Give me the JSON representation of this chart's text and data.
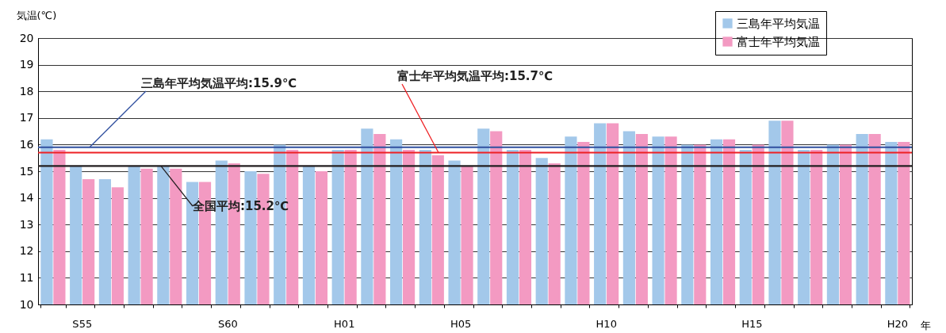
{
  "chart_data": {
    "type": "bar",
    "ylabel": "気温(℃)",
    "xlabel": "年",
    "categories": [
      null,
      "S55",
      null,
      null,
      null,
      null,
      "S60",
      null,
      null,
      null,
      "H01",
      null,
      null,
      null,
      "H05",
      null,
      null,
      null,
      null,
      "H10",
      null,
      null,
      null,
      null,
      "H15",
      null,
      null,
      null,
      null,
      "H20"
    ],
    "series": [
      {
        "name": "三島年平均気温",
        "color": "#a3c8ea",
        "values": [
          16.2,
          15.2,
          14.7,
          15.2,
          15.2,
          14.6,
          15.4,
          15.0,
          16.0,
          15.2,
          15.8,
          16.6,
          16.2,
          15.8,
          15.4,
          16.6,
          15.8,
          15.5,
          16.3,
          16.8,
          16.5,
          16.3,
          16.0,
          16.2,
          15.8,
          16.9,
          15.8,
          16.0,
          16.4,
          16.1
        ]
      },
      {
        "name": "富士年平均気温",
        "color": "#f39ac2",
        "values": [
          15.8,
          14.7,
          14.4,
          15.1,
          15.1,
          14.6,
          15.3,
          14.9,
          15.8,
          15.0,
          15.8,
          16.4,
          15.8,
          15.6,
          15.2,
          16.5,
          15.8,
          15.3,
          16.1,
          16.8,
          16.4,
          16.3,
          16.0,
          16.2,
          16.0,
          16.9,
          15.8,
          16.0,
          16.4,
          16.1
        ]
      }
    ],
    "ylim": [
      10,
      20
    ],
    "yticks": [
      10,
      11,
      12,
      13,
      14,
      15,
      16,
      17,
      18,
      19,
      20
    ],
    "grid": "y",
    "legend": "top right",
    "ref_lines": [
      {
        "axis": "y",
        "value": 15.9,
        "label": "三島年平均気温平均:15.9℃",
        "color": "#2f4f9f"
      },
      {
        "axis": "y",
        "value": 15.7,
        "label": "富士年平均気温平均:15.7℃",
        "color": "#ee2024"
      },
      {
        "axis": "y",
        "value": 15.2,
        "label": "全国平均:15.2℃",
        "color": "#231f20"
      }
    ]
  }
}
